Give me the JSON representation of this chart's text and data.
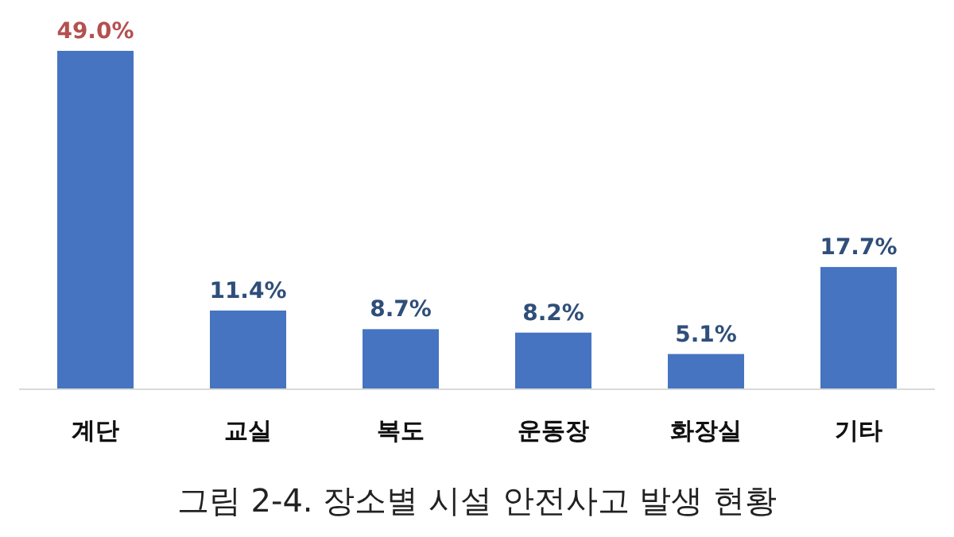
{
  "chart_data": {
    "type": "bar",
    "title": "그림 2-4. 장소별 시설 안전사고 발생 현황",
    "categories": [
      "계단",
      "교실",
      "복도",
      "운동장",
      "화장실",
      "기타"
    ],
    "values": [
      49.0,
      11.4,
      8.7,
      8.2,
      5.1,
      17.7
    ],
    "value_labels": [
      "49.0%",
      "11.4%",
      "8.7%",
      "8.2%",
      "5.1%",
      "17.7%"
    ],
    "color": "#4674c1"
  }
}
